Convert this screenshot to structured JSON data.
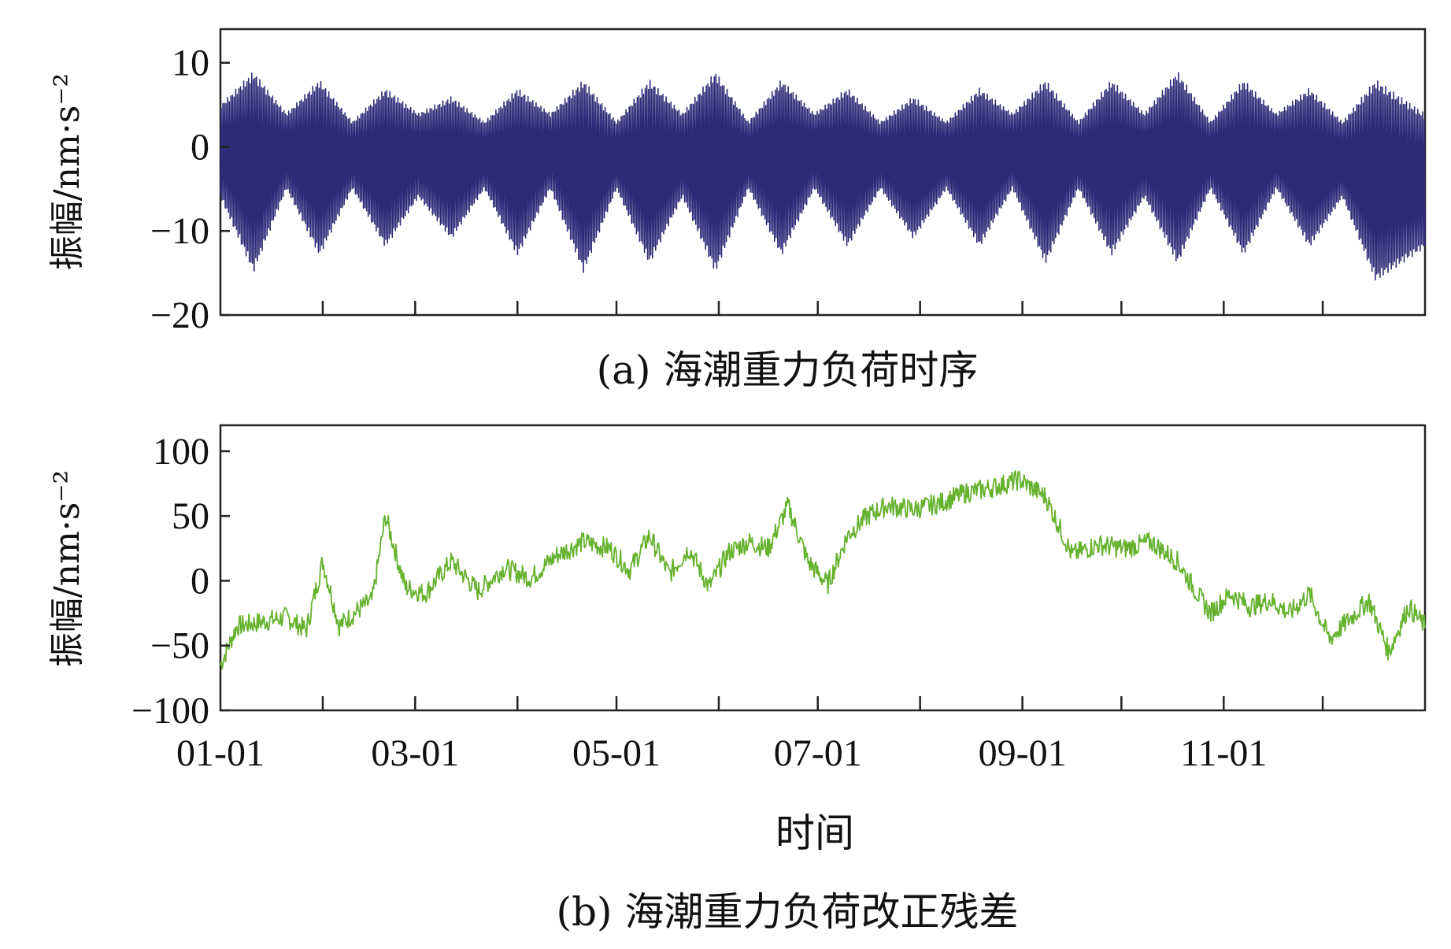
{
  "chart_data": [
    {
      "type": "line",
      "caption": "(a) 海潮重力负荷时序",
      "ylabel": "振幅/nm·s⁻²",
      "xlabel": "",
      "ylim": [
        -20,
        14
      ],
      "yticks": [
        10,
        0,
        -10,
        -20
      ],
      "ytick_labels": [
        "10",
        "0",
        "−10",
        "−20"
      ],
      "xlim": [
        "01-01",
        "12-31"
      ],
      "xticks": [
        "02-01",
        "03-01",
        "04-01",
        "05-01",
        "06-01",
        "07-01",
        "08-01",
        "09-01",
        "10-01",
        "11-01",
        "12-01"
      ],
      "xtick_labels_shown": false,
      "grid": false,
      "series": [
        {
          "color": "#2e2a78",
          "envelope_days": [
            0,
            10,
            20,
            30,
            40,
            50,
            60,
            70,
            80,
            90,
            100,
            110,
            120,
            130,
            140,
            150,
            160,
            170,
            180,
            190,
            200,
            210,
            220,
            230,
            240,
            250,
            260,
            270,
            280,
            290,
            300,
            310,
            320,
            330,
            340,
            350,
            365
          ],
          "upper": [
            5,
            9,
            4,
            8,
            3,
            7,
            4,
            6,
            3,
            7,
            4,
            8,
            3,
            8,
            4,
            9,
            3,
            8,
            4,
            7,
            3,
            6,
            3,
            7,
            4,
            8,
            3,
            8,
            4,
            9,
            3,
            8,
            4,
            7,
            3,
            8,
            4
          ],
          "lower": [
            -6,
            -15,
            -5,
            -13,
            -5,
            -12,
            -6,
            -11,
            -5,
            -13,
            -5,
            -15,
            -5,
            -14,
            -6,
            -15,
            -5,
            -13,
            -5,
            -12,
            -5,
            -11,
            -5,
            -12,
            -5,
            -14,
            -5,
            -13,
            -6,
            -14,
            -5,
            -13,
            -5,
            -12,
            -6,
            -16,
            -12
          ]
        }
      ]
    },
    {
      "type": "line",
      "caption": "(b) 海潮重力负荷改正残差",
      "ylabel": "振幅/nm·s⁻²",
      "xlabel": "时间",
      "ylim": [
        -100,
        120
      ],
      "yticks": [
        100,
        50,
        0,
        -50,
        -100
      ],
      "ytick_labels": [
        "100",
        "50",
        "0",
        "−50",
        "−100"
      ],
      "xlim": [
        "01-01",
        "12-31"
      ],
      "xticks": [
        "02-01",
        "03-01",
        "04-01",
        "05-01",
        "06-01",
        "07-01",
        "08-01",
        "09-01",
        "10-01",
        "11-01",
        "12-01"
      ],
      "xtick_labels": [
        "01-01",
        "03-01",
        "05-01",
        "07-01",
        "09-01",
        "11-01"
      ],
      "grid": false,
      "series": [
        {
          "color": "#66b22e",
          "days": [
            0,
            5,
            12,
            20,
            26,
            31,
            36,
            42,
            46,
            50,
            56,
            62,
            70,
            78,
            86,
            94,
            102,
            110,
            118,
            124,
            130,
            136,
            142,
            148,
            154,
            160,
            166,
            172,
            178,
            184,
            190,
            196,
            202,
            210,
            218,
            226,
            234,
            242,
            250,
            258,
            266,
            274,
            282,
            290,
            296,
            300,
            306,
            312,
            318,
            324,
            330,
            336,
            342,
            348,
            354,
            360,
            365
          ],
          "values": [
            -65,
            -35,
            -32,
            -28,
            -38,
            15,
            -35,
            -22,
            -15,
            50,
            -5,
            -10,
            15,
            -8,
            10,
            2,
            20,
            30,
            25,
            8,
            35,
            5,
            25,
            -5,
            22,
            30,
            25,
            58,
            15,
            -3,
            35,
            50,
            58,
            55,
            60,
            68,
            72,
            78,
            65,
            20,
            28,
            25,
            30,
            15,
            -10,
            -25,
            -10,
            -20,
            -15,
            -25,
            -10,
            -45,
            -30,
            -15,
            -55,
            -20,
            -35
          ]
        }
      ]
    }
  ]
}
